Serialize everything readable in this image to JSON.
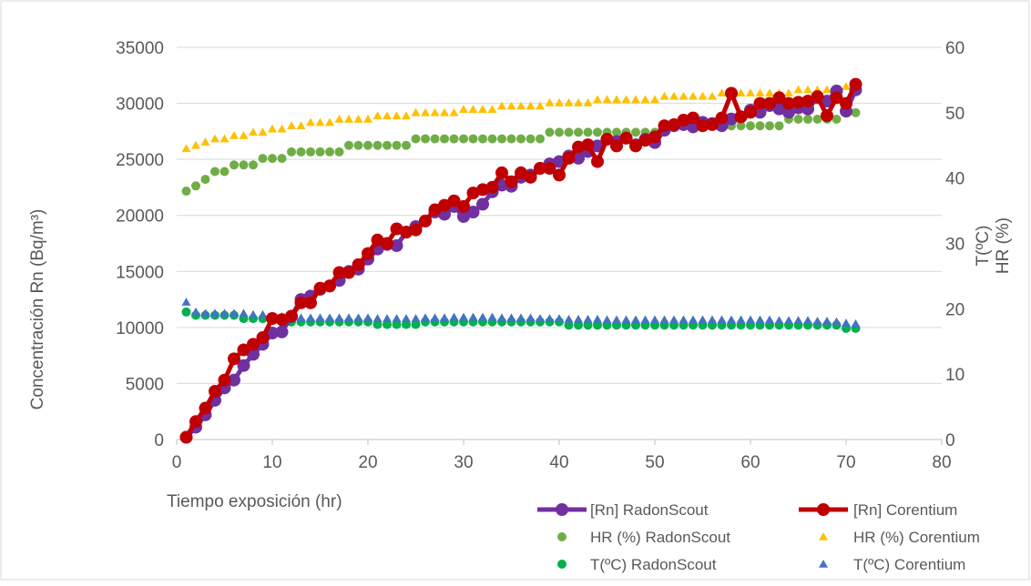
{
  "chart_data": {
    "type": "scatter",
    "xlabel": "Tiempo exposición (hr)",
    "ylabel": "Concentración Rn (Bq/m³)",
    "y2label_line1": "T(ºC)",
    "y2label_line2": "HR (%)",
    "xlim": [
      0,
      80
    ],
    "ylim": [
      0,
      35000
    ],
    "y2lim": [
      0,
      60
    ],
    "x_ticks": [
      "0",
      "10",
      "20",
      "30",
      "40",
      "50",
      "60",
      "70",
      "80"
    ],
    "y_ticks": [
      "0",
      "5000",
      "10000",
      "15000",
      "20000",
      "25000",
      "30000",
      "35000"
    ],
    "y2_ticks": [
      "0",
      "10",
      "20",
      "30",
      "40",
      "50",
      "60"
    ],
    "grid": "horizontal",
    "legend_position": "bottom-right",
    "series": [
      {
        "name": "[Rn] RadonScout",
        "axis": "left",
        "style": "line-marker",
        "color": "#7030A0",
        "x": [
          1,
          2,
          3,
          4,
          5,
          6,
          7,
          8,
          9,
          10,
          11,
          12,
          13,
          14,
          15,
          16,
          17,
          18,
          19,
          20,
          21,
          22,
          23,
          24,
          25,
          26,
          27,
          28,
          29,
          30,
          31,
          32,
          33,
          34,
          35,
          36,
          37,
          38,
          39,
          40,
          41,
          42,
          43,
          44,
          45,
          46,
          47,
          48,
          49,
          50,
          51,
          52,
          53,
          54,
          55,
          56,
          57,
          58,
          59,
          60,
          61,
          62,
          63,
          64,
          65,
          66,
          67,
          68,
          69,
          70,
          71
        ],
        "y": [
          200,
          1100,
          2200,
          3500,
          4600,
          5300,
          6600,
          7600,
          8500,
          9500,
          9600,
          11000,
          12500,
          12800,
          13400,
          13700,
          14200,
          15000,
          15200,
          16100,
          17000,
          17400,
          17300,
          18500,
          19000,
          19500,
          20300,
          20100,
          20800,
          19900,
          20300,
          21000,
          22100,
          22700,
          22600,
          23400,
          23600,
          24200,
          24600,
          24800,
          25300,
          25100,
          25700,
          26200,
          26800,
          26600,
          26900,
          26300,
          26800,
          26500,
          27600,
          28000,
          28100,
          27900,
          28300,
          28200,
          28000,
          28600,
          28800,
          29400,
          29200,
          29800,
          29500,
          29200,
          29600,
          29500,
          30500,
          30200,
          31100,
          29300,
          31200
        ]
      },
      {
        "name": "[Rn] Corentium",
        "axis": "left",
        "style": "line-marker",
        "color": "#C00000",
        "x": [
          1,
          2,
          3,
          4,
          5,
          6,
          7,
          8,
          9,
          10,
          11,
          12,
          13,
          14,
          15,
          16,
          17,
          18,
          19,
          20,
          21,
          22,
          23,
          24,
          25,
          26,
          27,
          28,
          29,
          30,
          31,
          32,
          33,
          34,
          35,
          36,
          37,
          38,
          39,
          40,
          41,
          42,
          43,
          44,
          45,
          46,
          47,
          48,
          49,
          50,
          51,
          52,
          53,
          54,
          55,
          56,
          57,
          58,
          59,
          60,
          61,
          62,
          63,
          64,
          65,
          66,
          67,
          68,
          69,
          70,
          71
        ],
        "y": [
          200,
          1600,
          2800,
          4300,
          5300,
          7200,
          8000,
          8500,
          9100,
          10800,
          10700,
          11000,
          12200,
          12200,
          13500,
          13700,
          14900,
          14900,
          15600,
          16600,
          17800,
          17500,
          18800,
          18500,
          18700,
          19500,
          20500,
          20900,
          21300,
          20800,
          22000,
          22300,
          22500,
          23800,
          23000,
          23800,
          23400,
          24200,
          24200,
          23600,
          25100,
          26100,
          26300,
          24800,
          26800,
          26200,
          26900,
          26200,
          26700,
          27000,
          28000,
          28100,
          28500,
          28700,
          28000,
          28100,
          28700,
          30900,
          28800,
          29200,
          30000,
          30000,
          30500,
          30000,
          30100,
          30200,
          30600,
          28900,
          30500,
          30000,
          31700
        ]
      },
      {
        "name": "HR (%) RadonScout",
        "axis": "right",
        "style": "marker",
        "color": "#70AD47",
        "x": [
          1,
          2,
          3,
          4,
          5,
          6,
          7,
          8,
          9,
          10,
          11,
          12,
          13,
          14,
          15,
          16,
          17,
          18,
          19,
          20,
          21,
          22,
          23,
          24,
          25,
          26,
          27,
          28,
          29,
          30,
          31,
          32,
          33,
          34,
          35,
          36,
          37,
          38,
          39,
          40,
          41,
          42,
          43,
          44,
          45,
          46,
          47,
          48,
          49,
          50,
          51,
          52,
          53,
          54,
          55,
          56,
          57,
          58,
          59,
          60,
          61,
          62,
          63,
          64,
          65,
          66,
          67,
          68,
          69,
          70,
          71
        ],
        "y": [
          38,
          38.8,
          39.8,
          41,
          41,
          42,
          42,
          42,
          43,
          43,
          43,
          44,
          44,
          44,
          44,
          44,
          44,
          45,
          45,
          45,
          45,
          45,
          45,
          45,
          46,
          46,
          46,
          46,
          46,
          46,
          46,
          46,
          46,
          46,
          46,
          46,
          46,
          46,
          47,
          47,
          47,
          47,
          47,
          47,
          47,
          47,
          47,
          47,
          47,
          47,
          48,
          48,
          48,
          48,
          48,
          48,
          48,
          48,
          48,
          48,
          48,
          48,
          48,
          49,
          49,
          49,
          49,
          49,
          49,
          50,
          50
        ]
      },
      {
        "name": "HR (%) Corentium",
        "axis": "right",
        "style": "marker",
        "color": "#FFC000",
        "x": [
          1,
          2,
          3,
          4,
          5,
          6,
          7,
          8,
          9,
          10,
          11,
          12,
          13,
          14,
          15,
          16,
          17,
          18,
          19,
          20,
          21,
          22,
          23,
          24,
          25,
          26,
          27,
          28,
          29,
          30,
          31,
          32,
          33,
          34,
          35,
          36,
          37,
          38,
          39,
          40,
          41,
          42,
          43,
          44,
          45,
          46,
          47,
          48,
          49,
          50,
          51,
          52,
          53,
          54,
          55,
          56,
          57,
          58,
          59,
          60,
          61,
          62,
          63,
          64,
          65,
          66,
          67,
          68,
          69,
          70,
          71
        ],
        "y": [
          44.5,
          45,
          45.5,
          46,
          46,
          46.5,
          46.5,
          47,
          47,
          47.5,
          47.5,
          48,
          48,
          48.5,
          48.5,
          48.5,
          49,
          49,
          49,
          49,
          49.5,
          49.5,
          49.5,
          49.5,
          50,
          50,
          50,
          50,
          50,
          50.5,
          50.5,
          50.5,
          50.5,
          51,
          51,
          51,
          51,
          51,
          51.5,
          51.5,
          51.5,
          51.5,
          51.5,
          52,
          52,
          52,
          52,
          52,
          52,
          52,
          52.5,
          52.5,
          52.5,
          52.5,
          52.5,
          52.5,
          53,
          53,
          53,
          53,
          53,
          53,
          53,
          53,
          53.5,
          53.5,
          53.5,
          53.5,
          53.5,
          54,
          54
        ]
      },
      {
        "name": "T(ºC) RadonScout",
        "axis": "right",
        "style": "marker",
        "color": "#00B050",
        "x": [
          1,
          2,
          3,
          4,
          5,
          6,
          7,
          8,
          9,
          10,
          11,
          12,
          13,
          14,
          15,
          16,
          17,
          18,
          19,
          20,
          21,
          22,
          23,
          24,
          25,
          26,
          27,
          28,
          29,
          30,
          31,
          32,
          33,
          34,
          35,
          36,
          37,
          38,
          39,
          40,
          41,
          42,
          43,
          44,
          45,
          46,
          47,
          48,
          49,
          50,
          51,
          52,
          53,
          54,
          55,
          56,
          57,
          58,
          59,
          60,
          61,
          62,
          63,
          64,
          65,
          66,
          67,
          68,
          69,
          70,
          71
        ],
        "y": [
          19.5,
          19,
          19,
          19,
          19,
          19,
          18.5,
          18.5,
          18.5,
          18.5,
          18,
          18,
          18,
          18,
          18,
          18,
          18,
          18,
          18,
          18,
          17.6,
          17.6,
          17.6,
          17.6,
          17.6,
          18,
          18,
          18,
          18,
          18,
          18,
          18,
          18,
          18,
          18,
          18,
          18,
          18,
          18,
          18,
          17.5,
          17.5,
          17.5,
          17.5,
          17.5,
          17.5,
          17.5,
          17.5,
          17.5,
          17.5,
          17.5,
          17.5,
          17.5,
          17.5,
          17.5,
          17.5,
          17.5,
          17.5,
          17.5,
          17.5,
          17.5,
          17.5,
          17.5,
          17.5,
          17.5,
          17.5,
          17.5,
          17.5,
          17.5,
          17,
          17
        ]
      },
      {
        "name": "T(ºC) Corentium",
        "axis": "right",
        "style": "marker",
        "color": "#4472C4",
        "x": [
          1,
          2,
          3,
          4,
          5,
          6,
          7,
          8,
          9,
          10,
          11,
          12,
          13,
          14,
          15,
          16,
          17,
          18,
          19,
          20,
          21,
          22,
          23,
          24,
          25,
          26,
          27,
          28,
          29,
          30,
          31,
          32,
          33,
          34,
          35,
          36,
          37,
          38,
          39,
          40,
          41,
          42,
          43,
          44,
          45,
          46,
          47,
          48,
          49,
          50,
          51,
          52,
          53,
          54,
          55,
          56,
          57,
          58,
          59,
          60,
          61,
          62,
          63,
          64,
          65,
          66,
          67,
          68,
          69,
          70,
          71
        ],
        "y": [
          21,
          19.5,
          19.3,
          19.3,
          19.3,
          19.3,
          19.3,
          19.1,
          19.1,
          18.8,
          18.8,
          18.8,
          18.6,
          18.6,
          18.6,
          18.6,
          18.6,
          18.6,
          18.6,
          18.6,
          18.5,
          18.5,
          18.5,
          18.5,
          18.5,
          18.6,
          18.6,
          18.6,
          18.7,
          18.7,
          18.7,
          18.7,
          18.7,
          18.6,
          18.6,
          18.6,
          18.6,
          18.5,
          18.5,
          18.5,
          18.4,
          18.4,
          18.4,
          18.4,
          18.3,
          18.3,
          18.3,
          18.3,
          18.3,
          18.3,
          18.3,
          18.3,
          18.3,
          18.3,
          18.3,
          18.3,
          18.3,
          18.3,
          18.3,
          18.3,
          18.3,
          18.3,
          18.2,
          18.2,
          18.2,
          18.2,
          18.1,
          18.1,
          18,
          17.8,
          17.7
        ]
      }
    ]
  }
}
